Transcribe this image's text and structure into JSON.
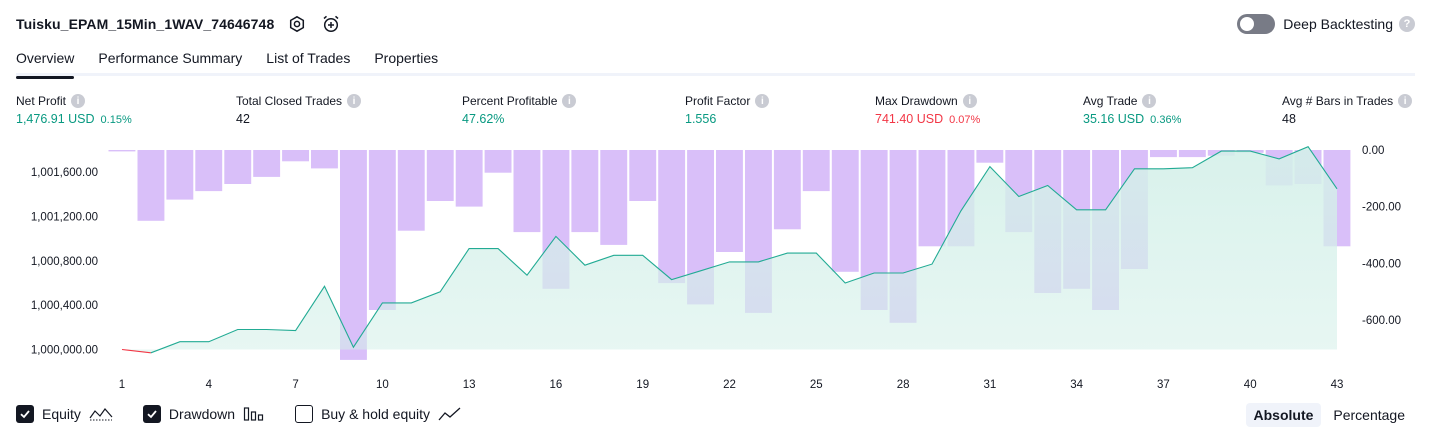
{
  "header": {
    "title": "Tuisku_EPAM_15Min_1WAV_74646748",
    "settings_icon": "gear-icon",
    "alert_icon": "alarm-clock-icon",
    "deep_backtesting_label": "Deep Backtesting",
    "deep_backtesting_enabled": false,
    "help_glyph": "?"
  },
  "tabs": [
    {
      "label": "Overview",
      "active": true
    },
    {
      "label": "Performance Summary",
      "active": false
    },
    {
      "label": "List of Trades",
      "active": false
    },
    {
      "label": "Properties",
      "active": false
    }
  ],
  "metrics": [
    {
      "label": "Net Profit",
      "value": "1,476.91 USD",
      "pct": "0.15%",
      "color": "pos"
    },
    {
      "label": "Total Closed Trades",
      "value": "42",
      "pct": "",
      "color": "neu"
    },
    {
      "label": "Percent Profitable",
      "value": "47.62%",
      "pct": "",
      "color": "pos"
    },
    {
      "label": "Profit Factor",
      "value": "1.556",
      "pct": "",
      "color": "pos"
    },
    {
      "label": "Max Drawdown",
      "value": "741.40 USD",
      "pct": "0.07%",
      "color": "neg"
    },
    {
      "label": "Avg Trade",
      "value": "35.16 USD",
      "pct": "0.36%",
      "color": "pos"
    },
    {
      "label": "Avg # Bars in Trades",
      "value": "48",
      "pct": "",
      "color": "neu"
    }
  ],
  "info_glyph": "i",
  "colors": {
    "equity_line": "#22ab94",
    "equity_fill": "#d4f0e9",
    "equity_negative_line": "#f23645",
    "drawdown_fill": "#d9bff9",
    "positive": "#089981",
    "negative": "#f23645"
  },
  "chart_data": {
    "type": "line",
    "x_ticks": [
      "1",
      "4",
      "7",
      "10",
      "13",
      "16",
      "19",
      "22",
      "25",
      "28",
      "31",
      "34",
      "37",
      "40",
      "43"
    ],
    "left_axis_ticks": [
      "1,000,000.00",
      "1,000,400.00",
      "1,000,800.00",
      "1,001,200.00",
      "1,001,600.00"
    ],
    "right_axis_ticks": [
      "0.00",
      "-200.00",
      "-400.00",
      "-600.00"
    ],
    "equity_ylim": [
      999950,
      1001800
    ],
    "drawdown_ylim": [
      -741.4,
      0
    ],
    "series": [
      {
        "name": "Equity",
        "x": [
          1,
          2,
          3,
          4,
          5,
          6,
          7,
          8,
          9,
          10,
          11,
          12,
          13,
          14,
          15,
          16,
          17,
          18,
          19,
          20,
          21,
          22,
          23,
          24,
          25,
          26,
          27,
          28,
          29,
          30,
          31,
          32,
          33,
          34,
          35,
          36,
          37,
          38,
          39,
          40,
          41,
          42,
          43
        ],
        "values": [
          1000000,
          999970,
          1000070,
          1000070,
          1000180,
          1000180,
          1000170,
          1000570,
          1000020,
          1000420,
          1000420,
          1000520,
          1000910,
          1000910,
          1000670,
          1001020,
          1000760,
          1000850,
          1000850,
          1000630,
          1000710,
          1000790,
          1000790,
          1000870,
          1000870,
          1000600,
          1000690,
          1000690,
          1000770,
          1001250,
          1001650,
          1001380,
          1001480,
          1001260,
          1001260,
          1001630,
          1001630,
          1001640,
          1001790,
          1001790,
          1001720,
          1001830,
          1001450
        ]
      },
      {
        "name": "Drawdown",
        "x": [
          1,
          2,
          3,
          4,
          5,
          6,
          7,
          8,
          9,
          10,
          11,
          12,
          13,
          14,
          15,
          16,
          17,
          18,
          19,
          20,
          21,
          22,
          23,
          24,
          25,
          26,
          27,
          28,
          29,
          30,
          31,
          32,
          33,
          34,
          35,
          36,
          37,
          38,
          39,
          40,
          41,
          42,
          43
        ],
        "values": [
          -5,
          -250,
          -175,
          -145,
          -120,
          -95,
          -40,
          -65,
          -741,
          -565,
          -285,
          -180,
          -200,
          -80,
          -290,
          -490,
          -290,
          -335,
          -180,
          -470,
          -545,
          -360,
          -575,
          -280,
          -145,
          -430,
          -565,
          -610,
          -340,
          -340,
          -45,
          -290,
          -505,
          -490,
          -565,
          -420,
          -25,
          -25,
          -20,
          -10,
          -125,
          -120,
          -340
        ]
      }
    ]
  },
  "legend": [
    {
      "label": "Equity",
      "checked": true,
      "glyph": "equity-line-icon"
    },
    {
      "label": "Drawdown",
      "checked": true,
      "glyph": "drawdown-bars-icon"
    },
    {
      "label": "Buy & hold equity",
      "checked": false,
      "glyph": "buy-hold-line-icon"
    }
  ],
  "scale": {
    "options": [
      "Absolute",
      "Percentage"
    ],
    "selected": "Absolute"
  }
}
